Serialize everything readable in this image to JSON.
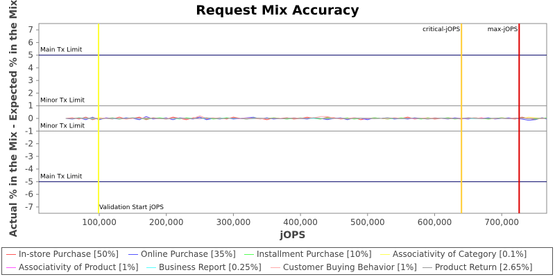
{
  "chart_data": {
    "type": "line",
    "title": "Request Mix Accuracy",
    "xlabel": "jOPS",
    "ylabel": "Actual % in the Mix - Expected % in the Mix",
    "xlim": [
      10000,
      767000
    ],
    "ylim": [
      -7.5,
      7.5
    ],
    "xticks": [
      100000,
      200000,
      300000,
      400000,
      500000,
      600000,
      700000
    ],
    "xtick_labels": [
      "100,000",
      "200,000",
      "300,000",
      "400,000",
      "500,000",
      "600,000",
      "700,000"
    ],
    "yticks": [
      -7,
      -6,
      -5,
      -4,
      -3,
      -2,
      -1,
      0,
      1,
      2,
      3,
      4,
      5,
      6,
      7
    ],
    "horizontal_lines": [
      {
        "label": "Main Tx Limit",
        "y": 5,
        "color": "#000066"
      },
      {
        "label": "Minor Tx Limit",
        "y": 1,
        "color": "#888888"
      },
      {
        "label": "Minor Tx Limit",
        "y": -1,
        "color": "#888888"
      },
      {
        "label": "Main Tx Limit",
        "y": -5,
        "color": "#000066"
      }
    ],
    "vertical_lines": [
      {
        "label": "Validation Start jOPS",
        "x": 99000,
        "color": "#ffff33"
      },
      {
        "label": "critical-jOPS",
        "x": 640000,
        "color": "#ffcc33"
      },
      {
        "label": "max-jOPS",
        "x": 726000,
        "color": "#dd0000"
      }
    ],
    "x": [
      50000,
      60000,
      70000,
      80000,
      90000,
      100000,
      110000,
      120000,
      130000,
      140000,
      150000,
      160000,
      170000,
      180000,
      190000,
      200000,
      210000,
      220000,
      230000,
      240000,
      250000,
      260000,
      270000,
      280000,
      290000,
      300000,
      310000,
      320000,
      330000,
      340000,
      350000,
      360000,
      370000,
      380000,
      390000,
      400000,
      410000,
      420000,
      430000,
      440000,
      450000,
      460000,
      470000,
      480000,
      490000,
      500000,
      510000,
      520000,
      530000,
      540000,
      550000,
      560000,
      570000,
      580000,
      590000,
      600000,
      610000,
      620000,
      630000,
      640000,
      650000,
      660000,
      670000,
      680000,
      690000,
      700000,
      710000,
      720000,
      730000,
      740000,
      750000,
      760000,
      767000
    ],
    "series": [
      {
        "name": "In-store Purchase [50%]",
        "color": "#ff5555",
        "values": [
          0,
          0.05,
          -0.05,
          0.1,
          -0.1,
          0.05,
          0,
          -0.05,
          0.1,
          -0.05,
          0,
          0.1,
          -0.1,
          0.05,
          0,
          -0.05,
          0.1,
          0,
          -0.1,
          0.05,
          0.1,
          -0.05,
          0,
          0.05,
          -0.05,
          0.1,
          0,
          -0.05,
          0.05,
          0,
          -0.1,
          0.05,
          0,
          0.05,
          -0.05,
          0,
          0.1,
          0,
          -0.05,
          0.1,
          0.05,
          -0.05,
          0,
          0.05,
          -0.1,
          0,
          0.05,
          0,
          -0.05,
          0.05,
          0,
          0.1,
          -0.05,
          0,
          0.05,
          -0.05,
          0,
          0.05,
          0,
          -0.05,
          0.05,
          0,
          0.05,
          -0.05,
          0,
          0.05,
          0,
          -0.05,
          0.1,
          0,
          -0.1,
          0.05,
          0
        ]
      },
      {
        "name": "Online Purchase [35%]",
        "color": "#5555ff",
        "values": [
          0,
          -0.05,
          0.05,
          -0.1,
          0.1,
          -0.1,
          0.05,
          0,
          -0.05,
          0.05,
          0,
          -0.1,
          0.15,
          -0.05,
          0,
          0.05,
          -0.1,
          0.05,
          0,
          -0.05,
          0.1,
          -0.1,
          0,
          -0.05,
          0.05,
          -0.05,
          0,
          0.05,
          0.1,
          -0.05,
          0.05,
          -0.05,
          0,
          -0.05,
          0.05,
          0,
          -0.05,
          0.05,
          0,
          -0.1,
          0,
          0.05,
          -0.1,
          0.05,
          0,
          -0.1,
          0.05,
          0,
          0.05,
          -0.05,
          0,
          -0.05,
          0.05,
          0,
          -0.05,
          0.05,
          0,
          -0.05,
          0.05,
          0,
          -0.05,
          0.05,
          0,
          0.05,
          -0.05,
          0,
          0.05,
          0,
          -0.05,
          -0.15,
          -0.1,
          0.05,
          -0.05
        ]
      },
      {
        "name": "Installment Purchase [10%]",
        "color": "#55ff55",
        "values": [
          0,
          0,
          0.05,
          0,
          -0.05,
          0.05,
          0,
          0.05,
          -0.05,
          0,
          0.05,
          0,
          -0.05,
          0,
          0.05,
          0,
          0,
          -0.05,
          0.05,
          0,
          0,
          0.05,
          -0.05,
          0,
          0.05,
          0,
          0,
          -0.05,
          0.05,
          0,
          0,
          0.05,
          0,
          -0.05,
          0,
          0.05,
          0,
          0,
          -0.05,
          0.05,
          0,
          0,
          0.05,
          -0.05,
          0,
          0,
          0.05,
          0,
          -0.05,
          0,
          0.05,
          0,
          0,
          -0.05,
          0.05,
          0,
          0,
          0.05,
          -0.05,
          0,
          0,
          0.05,
          0,
          -0.05,
          0,
          0.05,
          0,
          0,
          0.05,
          0,
          -0.05,
          0,
          0.05
        ]
      },
      {
        "name": "Associativity of Category [0.1%]",
        "color": "#ffff55",
        "values": [
          0,
          0,
          0,
          0,
          0,
          0.05,
          0,
          0,
          0,
          0,
          0,
          0,
          0,
          0,
          0,
          0,
          0,
          0,
          0,
          0,
          0,
          0,
          0,
          0,
          0,
          0,
          0,
          0,
          0,
          0,
          0,
          0,
          0,
          0,
          0,
          0,
          0,
          0,
          0,
          0,
          0,
          0,
          0,
          0,
          0,
          0,
          0,
          0,
          0,
          0,
          0,
          0,
          0,
          0,
          0,
          0,
          0,
          0,
          0,
          0,
          0,
          0,
          0,
          0,
          0,
          0,
          0,
          0,
          0,
          0.1,
          0.05,
          0,
          0
        ]
      },
      {
        "name": "Associativity of Product [1%]",
        "color": "#ff55ff",
        "values": [
          0,
          0,
          0.02,
          0,
          -0.02,
          0,
          0.02,
          0,
          0,
          -0.02,
          0,
          0.02,
          0,
          0,
          -0.02,
          0,
          0,
          0.02,
          0,
          0,
          -0.02,
          0,
          0.02,
          0,
          0,
          0,
          -0.02,
          0,
          0.02,
          0,
          0,
          0,
          -0.02,
          0,
          0,
          0.02,
          0,
          0,
          0,
          -0.02,
          0,
          0.02,
          0,
          0,
          0,
          -0.02,
          0,
          0,
          0.02,
          0,
          0,
          0,
          -0.02,
          0,
          0,
          0.02,
          0,
          0,
          0,
          -0.02,
          0,
          0,
          0.02,
          0,
          0,
          0,
          -0.02,
          0,
          0,
          0.02,
          0,
          0,
          0
        ]
      },
      {
        "name": "Business Report [0.25%]",
        "color": "#55ffff",
        "values": [
          0,
          0,
          0,
          0.02,
          0,
          0,
          0,
          -0.02,
          0,
          0,
          0,
          0,
          0.02,
          0,
          0,
          0,
          0,
          -0.02,
          0,
          0,
          0,
          0,
          0,
          0.02,
          0,
          0,
          0,
          0,
          -0.02,
          0,
          0,
          0,
          0,
          0,
          0.02,
          0,
          0,
          0,
          0,
          -0.02,
          0,
          0,
          0,
          0,
          0,
          0.02,
          0,
          0,
          0,
          0,
          -0.02,
          0,
          0,
          0,
          0,
          0,
          0.02,
          0,
          0,
          0,
          0,
          -0.02,
          0,
          0,
          0,
          0,
          0,
          0.02,
          0,
          0,
          0,
          0,
          0
        ]
      },
      {
        "name": "Customer Buying Behavior [1%]",
        "color": "#ffaaaa",
        "values": [
          0,
          0.02,
          0,
          -0.02,
          0.05,
          0,
          0,
          0.02,
          0,
          -0.05,
          0,
          0.02,
          0.05,
          0,
          -0.02,
          0,
          0.02,
          0,
          -0.05,
          0,
          0.2,
          0,
          0.05,
          -0.02,
          0,
          0.05,
          0,
          0.02,
          0,
          -0.05,
          0,
          0.02,
          0,
          0,
          0.05,
          0,
          0.02,
          0.05,
          0.15,
          0.15,
          0,
          -0.02,
          0,
          0.05,
          0,
          0.02,
          0,
          0,
          -0.02,
          0.05,
          0,
          0.02,
          0,
          0.02,
          0,
          0.05,
          0,
          -0.02,
          0,
          0.02,
          0,
          0.05,
          0,
          0,
          -0.02,
          0.02,
          0,
          0.05,
          0,
          0.02,
          0,
          -0.02,
          0
        ]
      },
      {
        "name": "Product Return [2.65%]",
        "color": "#999999",
        "values": [
          0,
          -0.02,
          0.02,
          0,
          0.05,
          -0.05,
          0,
          0.02,
          -0.02,
          0,
          0.05,
          0,
          -0.02,
          0.02,
          0,
          -0.05,
          0,
          0.02,
          0,
          -0.02,
          0,
          0.05,
          0,
          -0.02,
          0,
          0.02,
          0,
          -0.05,
          0,
          0.02,
          0,
          0,
          -0.02,
          0.02,
          0,
          -0.02,
          0,
          0.05,
          0,
          -0.02,
          0,
          0.02,
          -0.05,
          0,
          0.02,
          0,
          -0.02,
          0,
          0.05,
          0,
          -0.02,
          0,
          0.02,
          0,
          -0.05,
          0,
          0.02,
          0,
          -0.02,
          0,
          0.05,
          0,
          -0.02,
          0,
          0.02,
          0,
          -0.02,
          0,
          0.05,
          -0.05,
          0,
          0.02,
          0
        ]
      }
    ],
    "legend_position": "bottom",
    "grid": false
  }
}
